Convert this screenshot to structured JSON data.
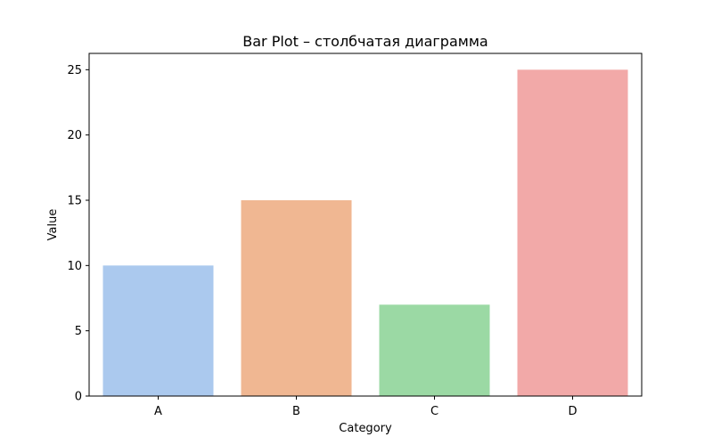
{
  "chart_data": {
    "type": "bar",
    "title": "Bar Plot – столбчатая диаграмма",
    "xlabel": "Category",
    "ylabel": "Value",
    "categories": [
      "A",
      "B",
      "C",
      "D"
    ],
    "values": [
      10,
      15,
      7,
      25
    ],
    "colors": [
      "#abc9ee",
      "#f0b792",
      "#9bd9a4",
      "#f2a9a8"
    ],
    "ylim": [
      0,
      26.25
    ],
    "yticks": [
      0,
      5,
      10,
      15,
      20,
      25
    ],
    "grid": false,
    "legend": "none"
  }
}
